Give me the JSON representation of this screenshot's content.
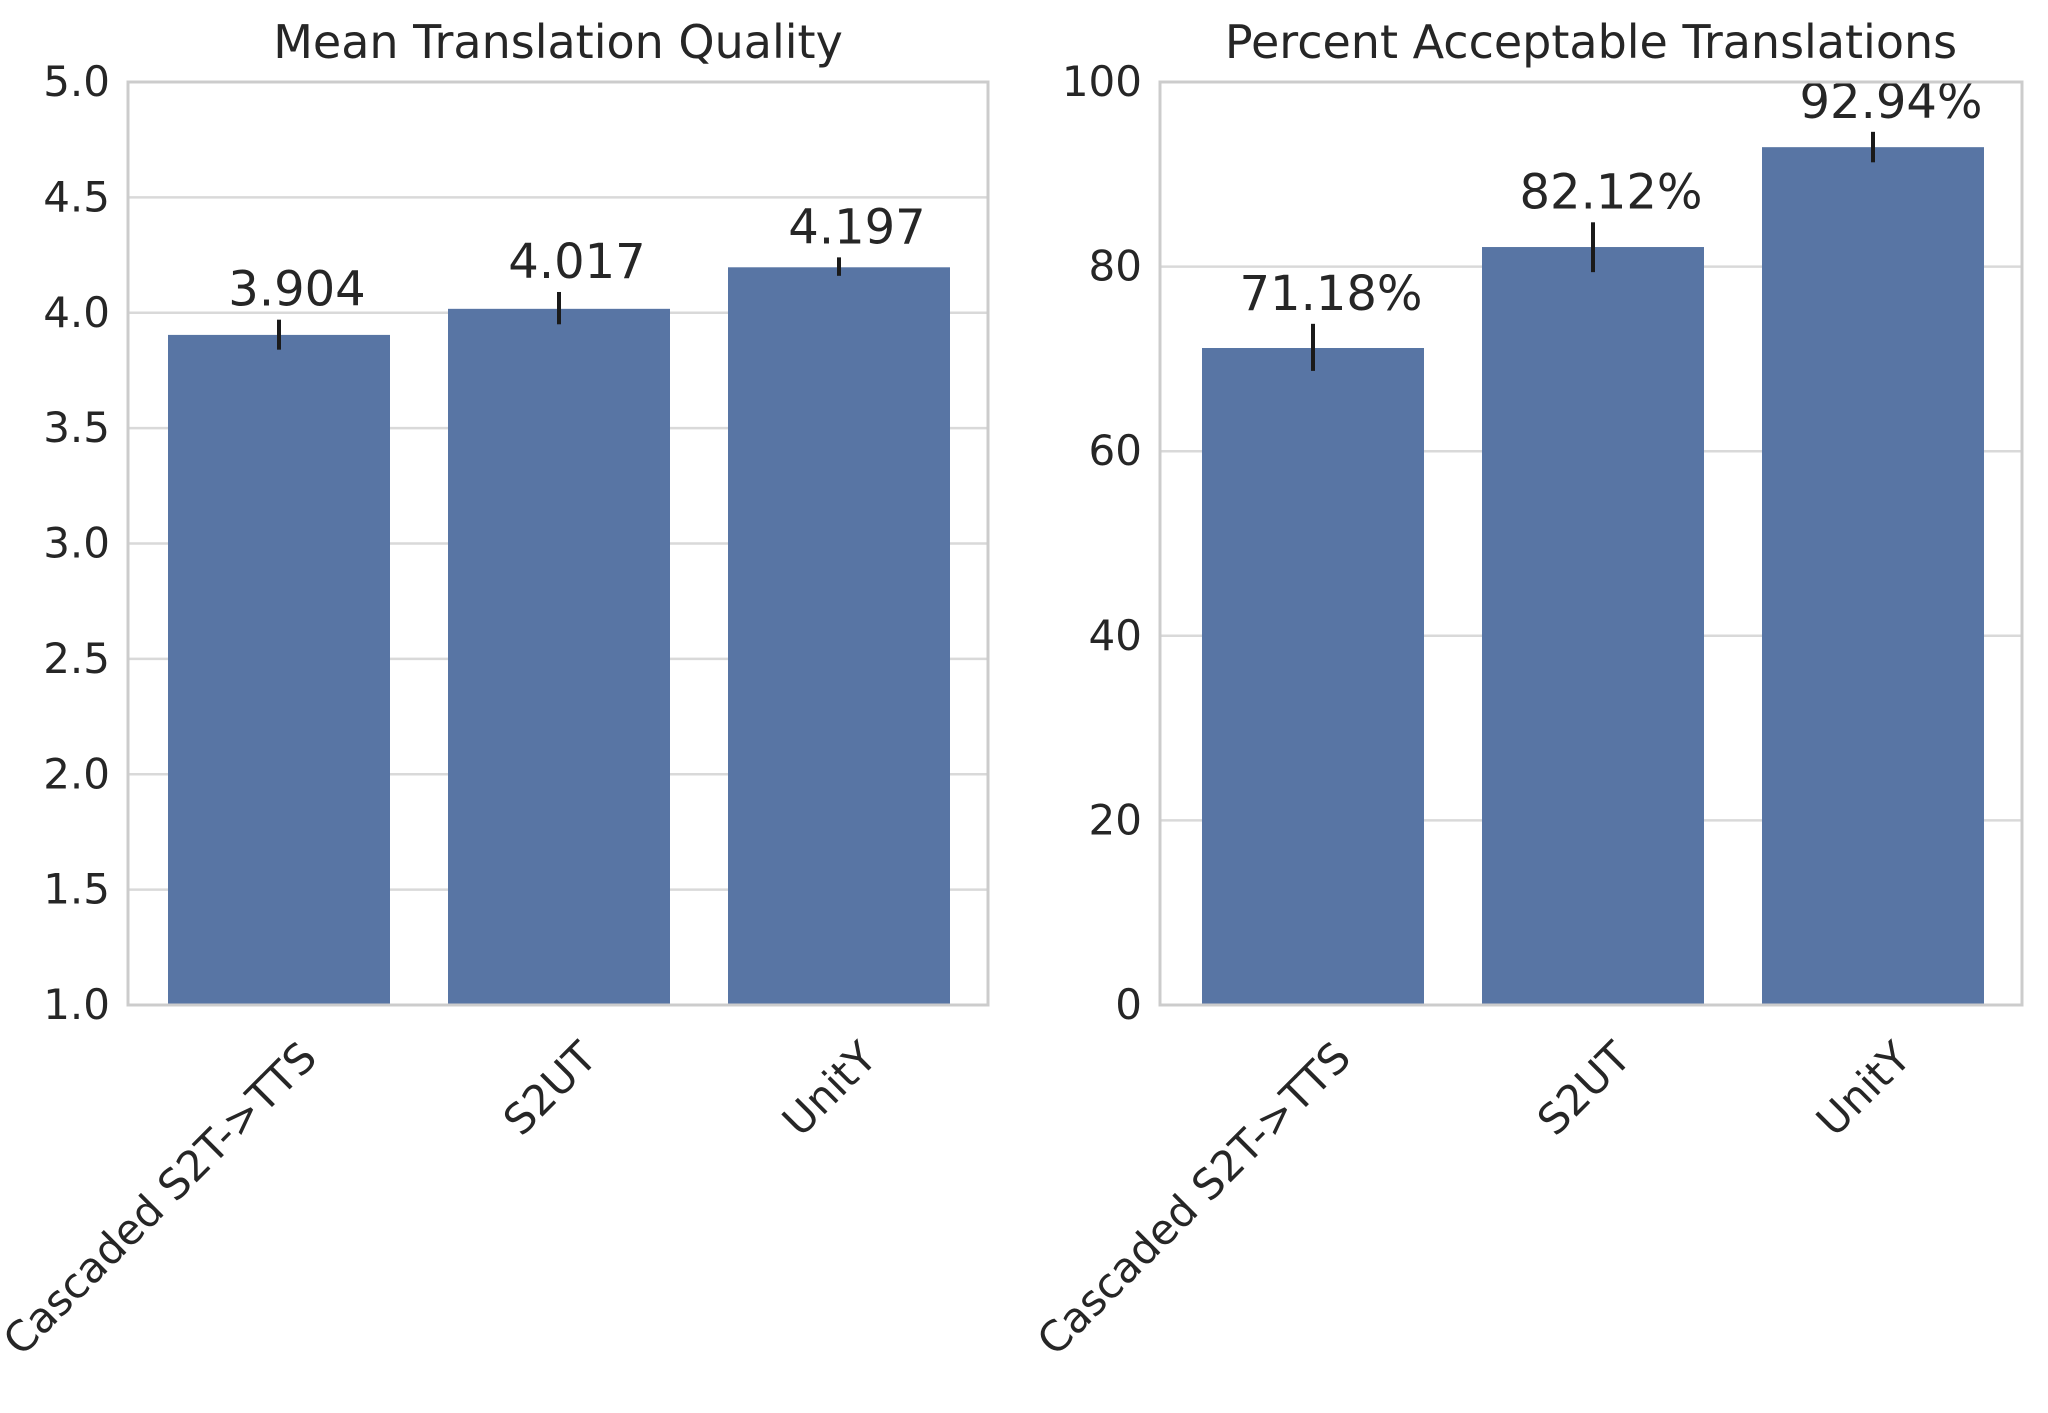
{
  "chart_data": [
    {
      "type": "bar",
      "title": "Mean Translation Quality",
      "xlabel": "",
      "ylabel": "",
      "categories": [
        "Cascaded S2T->TTS",
        "S2UT",
        "UnitY"
      ],
      "values": [
        3.904,
        4.017,
        4.197
      ],
      "error_bars": [
        [
          3.84,
          3.97
        ],
        [
          3.95,
          4.09
        ],
        [
          4.16,
          4.24
        ]
      ],
      "data_labels": [
        "3.904",
        "4.017",
        "4.197"
      ],
      "ylim": [
        1.0,
        5.0
      ],
      "yticks": [
        1.0,
        1.5,
        2.0,
        2.5,
        3.0,
        3.5,
        4.0,
        4.5,
        5.0
      ],
      "ytick_labels": [
        "1.0",
        "1.5",
        "2.0",
        "2.5",
        "3.0",
        "3.5",
        "4.0",
        "4.5",
        "5.0"
      ],
      "grid": true,
      "bar_color": "#5875a4"
    },
    {
      "type": "bar",
      "title": "Percent Acceptable Translations",
      "xlabel": "",
      "ylabel": "",
      "categories": [
        "Cascaded S2T->TTS",
        "S2UT",
        "UnitY"
      ],
      "values": [
        71.18,
        82.12,
        92.94
      ],
      "error_bars": [
        [
          68.7,
          73.8
        ],
        [
          79.4,
          84.8
        ],
        [
          91.3,
          94.6
        ]
      ],
      "data_labels": [
        "71.18%",
        "82.12%",
        "92.94%"
      ],
      "ylim": [
        0,
        100
      ],
      "yticks": [
        0,
        20,
        40,
        60,
        80,
        100
      ],
      "ytick_labels": [
        "0",
        "20",
        "40",
        "60",
        "80",
        "100"
      ],
      "grid": true,
      "bar_color": "#5875a4"
    }
  ]
}
